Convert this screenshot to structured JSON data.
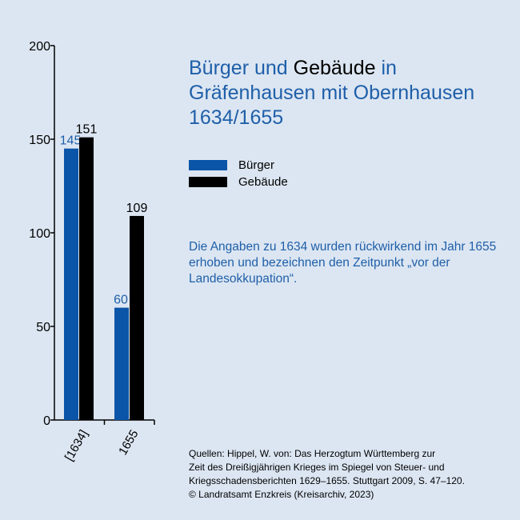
{
  "title": {
    "part1": "Bürger und ",
    "part2": "Gebäude",
    "part3": " in",
    "line2": "Gräfenhausen mit Obernhausen",
    "line3": "1634/1655"
  },
  "legend": [
    {
      "label": "Bürger",
      "color": "#0a55a8"
    },
    {
      "label": "Gebäude",
      "color": "#000000"
    }
  ],
  "note": "Die Angaben zu 1634 wurden rückwirkend im Jahr 1655 erhoben und bezeichnen den Zeitpunkt „vor der Landesokkupation“.",
  "sources": {
    "line1": "Quellen: Hippel, W. von: Das Herzogtum Württemberg zur",
    "line2": "Zeit des Dreißigjährigen Krieges im Spiegel von Steuer- und",
    "line3": "Kriegsschadensberichten 1629–1655. Stuttgart 2009, S. 47–120.",
    "line4": "© Landratsamt Enzkreis (Kreisarchiv, 2023)"
  },
  "chart_data": {
    "type": "bar",
    "categories": [
      "[1634]",
      "1655"
    ],
    "series": [
      {
        "name": "Bürger",
        "values": [
          145,
          60
        ],
        "color": "#0a55a8",
        "label_color": "#1f5fa9"
      },
      {
        "name": "Gebäude",
        "values": [
          151,
          109
        ],
        "color": "#000000",
        "label_color": "#000000"
      }
    ],
    "yticks": [
      0,
      50,
      100,
      150,
      200
    ],
    "ylim": [
      0,
      200
    ],
    "grid": false,
    "legend_position": "right"
  }
}
